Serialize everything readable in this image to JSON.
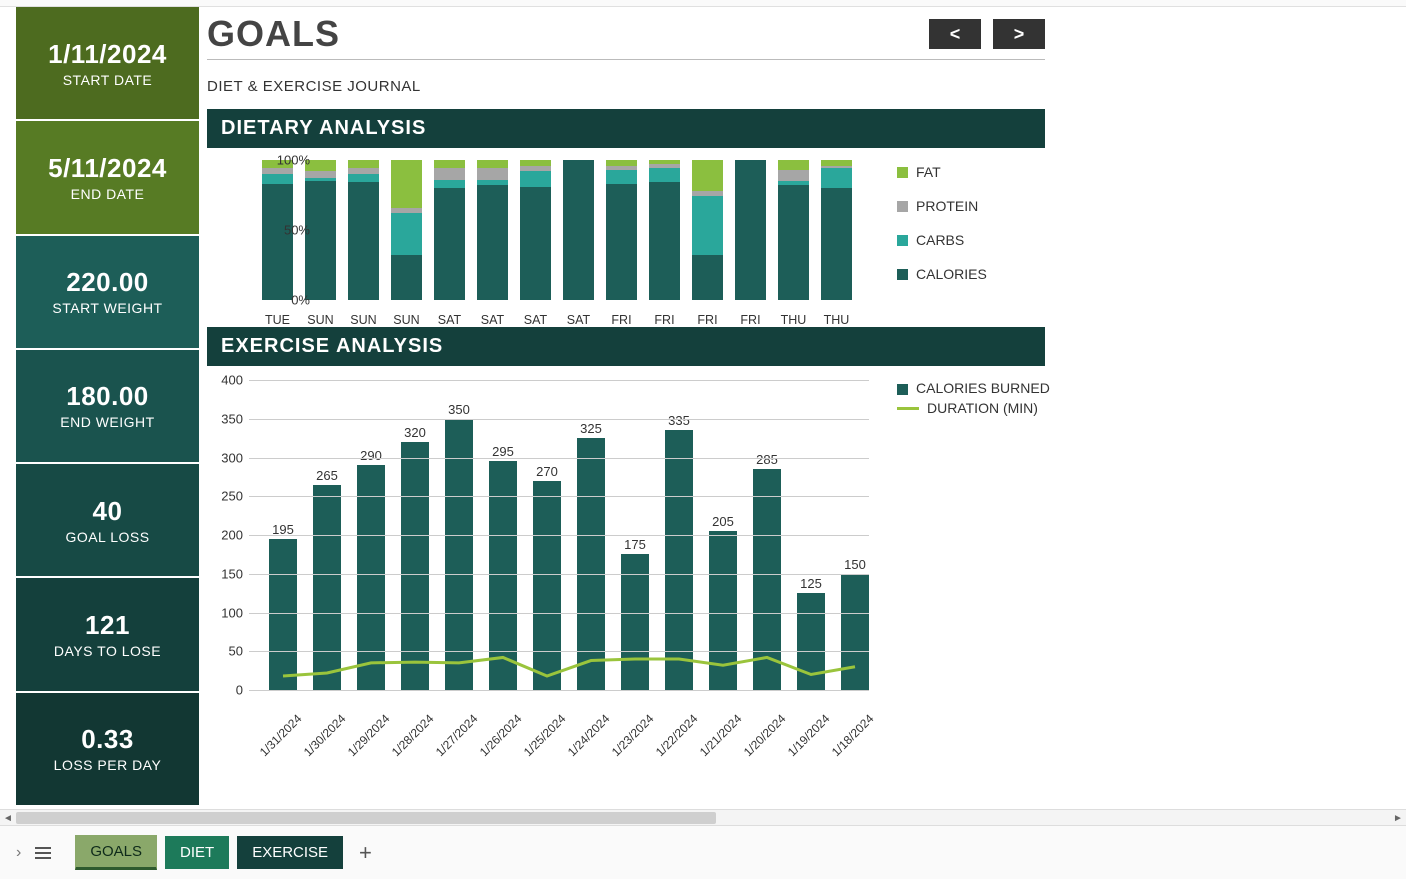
{
  "colors": {
    "calories": "#1d5e58",
    "carbs": "#2aa79b",
    "protein": "#a6a6a6",
    "fat": "#8bbf3f",
    "line": "#9ac43c",
    "sectionHead": "#14403c"
  },
  "header": {
    "title": "GOALS",
    "subtitle": "DIET & EXERCISE JOURNAL",
    "prev": "<",
    "next": ">"
  },
  "sidebar": [
    {
      "value": "1/11/2024",
      "label": "START DATE"
    },
    {
      "value": "5/11/2024",
      "label": "END DATE"
    },
    {
      "value": "220.00",
      "label": "START WEIGHT"
    },
    {
      "value": "180.00",
      "label": "END WEIGHT"
    },
    {
      "value": "40",
      "label": "GOAL LOSS"
    },
    {
      "value": "121",
      "label": "DAYS TO LOSE"
    },
    {
      "value": "0.33",
      "label": "LOSS PER DAY"
    }
  ],
  "dietary": {
    "title": "DIETARY ANALYSIS",
    "ylabels": [
      "100%",
      "50%",
      "0%"
    ],
    "legend": [
      "FAT",
      "PROTEIN",
      "CARBS",
      "CALORIES"
    ],
    "categories": [
      "TUE",
      "SUN",
      "SUN",
      "SUN",
      "SAT",
      "SAT",
      "SAT",
      "SAT",
      "FRI",
      "FRI",
      "FRI",
      "FRI",
      "THU",
      "THU"
    ],
    "stacks": [
      {
        "calories": 83,
        "carbs": 7,
        "protein": 4,
        "fat": 6
      },
      {
        "calories": 85,
        "carbs": 2,
        "protein": 5,
        "fat": 8
      },
      {
        "calories": 84,
        "carbs": 6,
        "protein": 4,
        "fat": 6
      },
      {
        "calories": 32,
        "carbs": 30,
        "protein": 4,
        "fat": 34
      },
      {
        "calories": 80,
        "carbs": 6,
        "protein": 8,
        "fat": 6
      },
      {
        "calories": 82,
        "carbs": 4,
        "protein": 8,
        "fat": 6
      },
      {
        "calories": 81,
        "carbs": 11,
        "protein": 4,
        "fat": 4
      },
      {
        "calories": 100,
        "carbs": 0,
        "protein": 0,
        "fat": 0
      },
      {
        "calories": 83,
        "carbs": 10,
        "protein": 3,
        "fat": 4
      },
      {
        "calories": 84,
        "carbs": 10,
        "protein": 3,
        "fat": 3
      },
      {
        "calories": 32,
        "carbs": 42,
        "protein": 4,
        "fat": 22
      },
      {
        "calories": 100,
        "carbs": 0,
        "protein": 0,
        "fat": 0
      },
      {
        "calories": 82,
        "carbs": 3,
        "protein": 8,
        "fat": 7
      },
      {
        "calories": 80,
        "carbs": 14,
        "protein": 2,
        "fat": 4
      }
    ]
  },
  "exercise": {
    "title": "EXERCISE ANALYSIS",
    "ymax": 400,
    "ytick": 50,
    "legend": {
      "bars": "CALORIES BURNED",
      "line": "DURATION (MIN)"
    },
    "categories": [
      "1/31/2024",
      "1/30/2024",
      "1/29/2024",
      "1/28/2024",
      "1/27/2024",
      "1/26/2024",
      "1/25/2024",
      "1/24/2024",
      "1/23/2024",
      "1/22/2024",
      "1/21/2024",
      "1/20/2024",
      "1/19/2024",
      "1/18/2024"
    ],
    "values": [
      195,
      265,
      290,
      320,
      350,
      295,
      270,
      325,
      175,
      335,
      205,
      285,
      125,
      150
    ],
    "duration": [
      18,
      22,
      35,
      36,
      35,
      42,
      18,
      38,
      40,
      40,
      32,
      42,
      20,
      30
    ]
  },
  "tabs": {
    "t1": "GOALS",
    "t2": "DIET",
    "t3": "EXERCISE",
    "add": "+"
  }
}
